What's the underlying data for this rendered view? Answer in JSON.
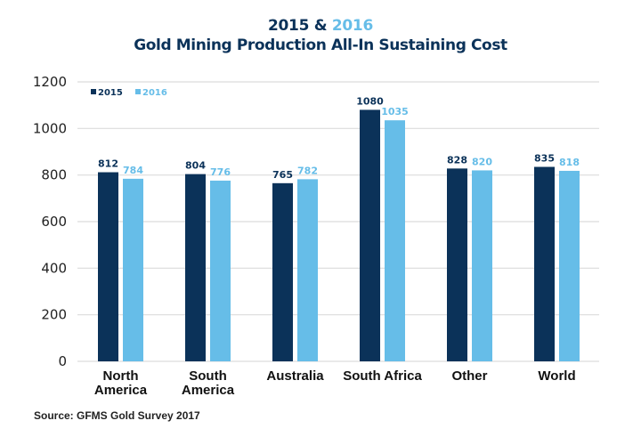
{
  "chart_data": {
    "type": "bar",
    "title_year_a": "2015",
    "title_amp": " & ",
    "title_year_b": "2016",
    "title": "Gold Mining Production All-In Sustaining Cost",
    "xlabel": "",
    "ylabel": "",
    "ylim": [
      0,
      1200
    ],
    "yticks": [
      0,
      200,
      400,
      600,
      800,
      1000,
      1200
    ],
    "grid": true,
    "legend_position": "top-left",
    "categories": [
      [
        "North",
        "America"
      ],
      [
        "South",
        "America"
      ],
      [
        "Australia"
      ],
      [
        "South Africa"
      ],
      [
        "Other"
      ],
      [
        "World"
      ]
    ],
    "series": [
      {
        "name": "2015",
        "color": "#0b3259",
        "values": [
          812,
          804,
          765,
          1080,
          828,
          835
        ]
      },
      {
        "name": "2016",
        "color": "#66bde8",
        "values": [
          784,
          776,
          782,
          1035,
          820,
          818
        ]
      }
    ],
    "source": "Source: GFMS Gold Survey 2017"
  }
}
